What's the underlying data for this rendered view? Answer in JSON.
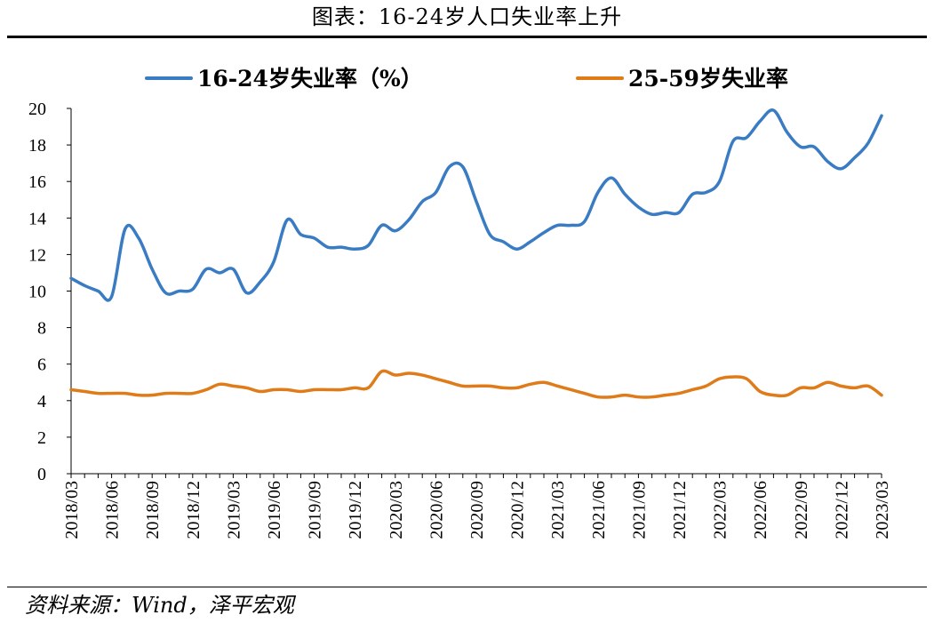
{
  "header": {
    "title": "图表：16-24岁人口失业率上升"
  },
  "footer": {
    "source": "资料来源：Wind，泽平宏观"
  },
  "chart_data": {
    "type": "line",
    "title": "图表：16-24岁人口失业率上升",
    "xlabel": "",
    "ylabel": "",
    "ylim": [
      0,
      20
    ],
    "yticks": [
      "0",
      "2",
      "4",
      "6",
      "8",
      "10",
      "12",
      "14",
      "16",
      "18",
      "20"
    ],
    "xticks": [
      "2018/03",
      "2018/06",
      "2018/09",
      "2018/12",
      "2019/03",
      "2019/06",
      "2019/09",
      "2019/12",
      "2020/03",
      "2020/06",
      "2020/09",
      "2020/12",
      "2021/03",
      "2021/06",
      "2021/09",
      "2021/12",
      "2022/03",
      "2022/06",
      "2022/09",
      "2022/12",
      "2023/03"
    ],
    "legend": "top",
    "grid": false,
    "x": [
      "2018/03",
      "2018/04",
      "2018/05",
      "2018/06",
      "2018/07",
      "2018/08",
      "2018/09",
      "2018/10",
      "2018/11",
      "2018/12",
      "2019/01",
      "2019/02",
      "2019/03",
      "2019/04",
      "2019/05",
      "2019/06",
      "2019/07",
      "2019/08",
      "2019/09",
      "2019/10",
      "2019/11",
      "2019/12",
      "2020/01",
      "2020/02",
      "2020/03",
      "2020/04",
      "2020/05",
      "2020/06",
      "2020/07",
      "2020/08",
      "2020/09",
      "2020/10",
      "2020/11",
      "2020/12",
      "2021/01",
      "2021/02",
      "2021/03",
      "2021/04",
      "2021/05",
      "2021/06",
      "2021/07",
      "2021/08",
      "2021/09",
      "2021/10",
      "2021/11",
      "2021/12",
      "2022/01",
      "2022/02",
      "2022/03",
      "2022/04",
      "2022/05",
      "2022/06",
      "2022/07",
      "2022/08",
      "2022/09",
      "2022/10",
      "2022/11",
      "2022/12",
      "2023/01",
      "2023/02",
      "2023/03"
    ],
    "series": [
      {
        "name": "16-24岁失业率（%）",
        "color": "#3a7cc3",
        "values": [
          10.7,
          10.3,
          10.0,
          9.7,
          13.4,
          12.9,
          11.2,
          9.9,
          10.0,
          10.1,
          11.2,
          11.0,
          11.2,
          9.9,
          10.5,
          11.6,
          13.9,
          13.1,
          12.9,
          12.4,
          12.4,
          12.3,
          12.5,
          13.6,
          13.3,
          13.9,
          14.9,
          15.4,
          16.8,
          16.8,
          14.9,
          13.1,
          12.7,
          12.3,
          12.7,
          13.2,
          13.6,
          13.6,
          13.8,
          15.4,
          16.2,
          15.3,
          14.6,
          14.2,
          14.3,
          14.3,
          15.3,
          15.4,
          16.0,
          18.2,
          18.4,
          19.3,
          19.9,
          18.7,
          17.9,
          17.9,
          17.1,
          16.7,
          17.3,
          18.1,
          19.6
        ]
      },
      {
        "name": "25-59岁失业率",
        "color": "#e07b1a",
        "values": [
          4.6,
          4.5,
          4.4,
          4.4,
          4.4,
          4.3,
          4.3,
          4.4,
          4.4,
          4.4,
          4.6,
          4.9,
          4.8,
          4.7,
          4.5,
          4.6,
          4.6,
          4.5,
          4.6,
          4.6,
          4.6,
          4.7,
          4.7,
          5.6,
          5.4,
          5.5,
          5.4,
          5.2,
          5.0,
          4.8,
          4.8,
          4.8,
          4.7,
          4.7,
          4.9,
          5.0,
          4.8,
          4.6,
          4.4,
          4.2,
          4.2,
          4.3,
          4.2,
          4.2,
          4.3,
          4.4,
          4.6,
          4.8,
          5.2,
          5.3,
          5.2,
          4.5,
          4.3,
          4.3,
          4.7,
          4.7,
          5.0,
          4.8,
          4.7,
          4.8,
          4.3
        ]
      }
    ]
  }
}
